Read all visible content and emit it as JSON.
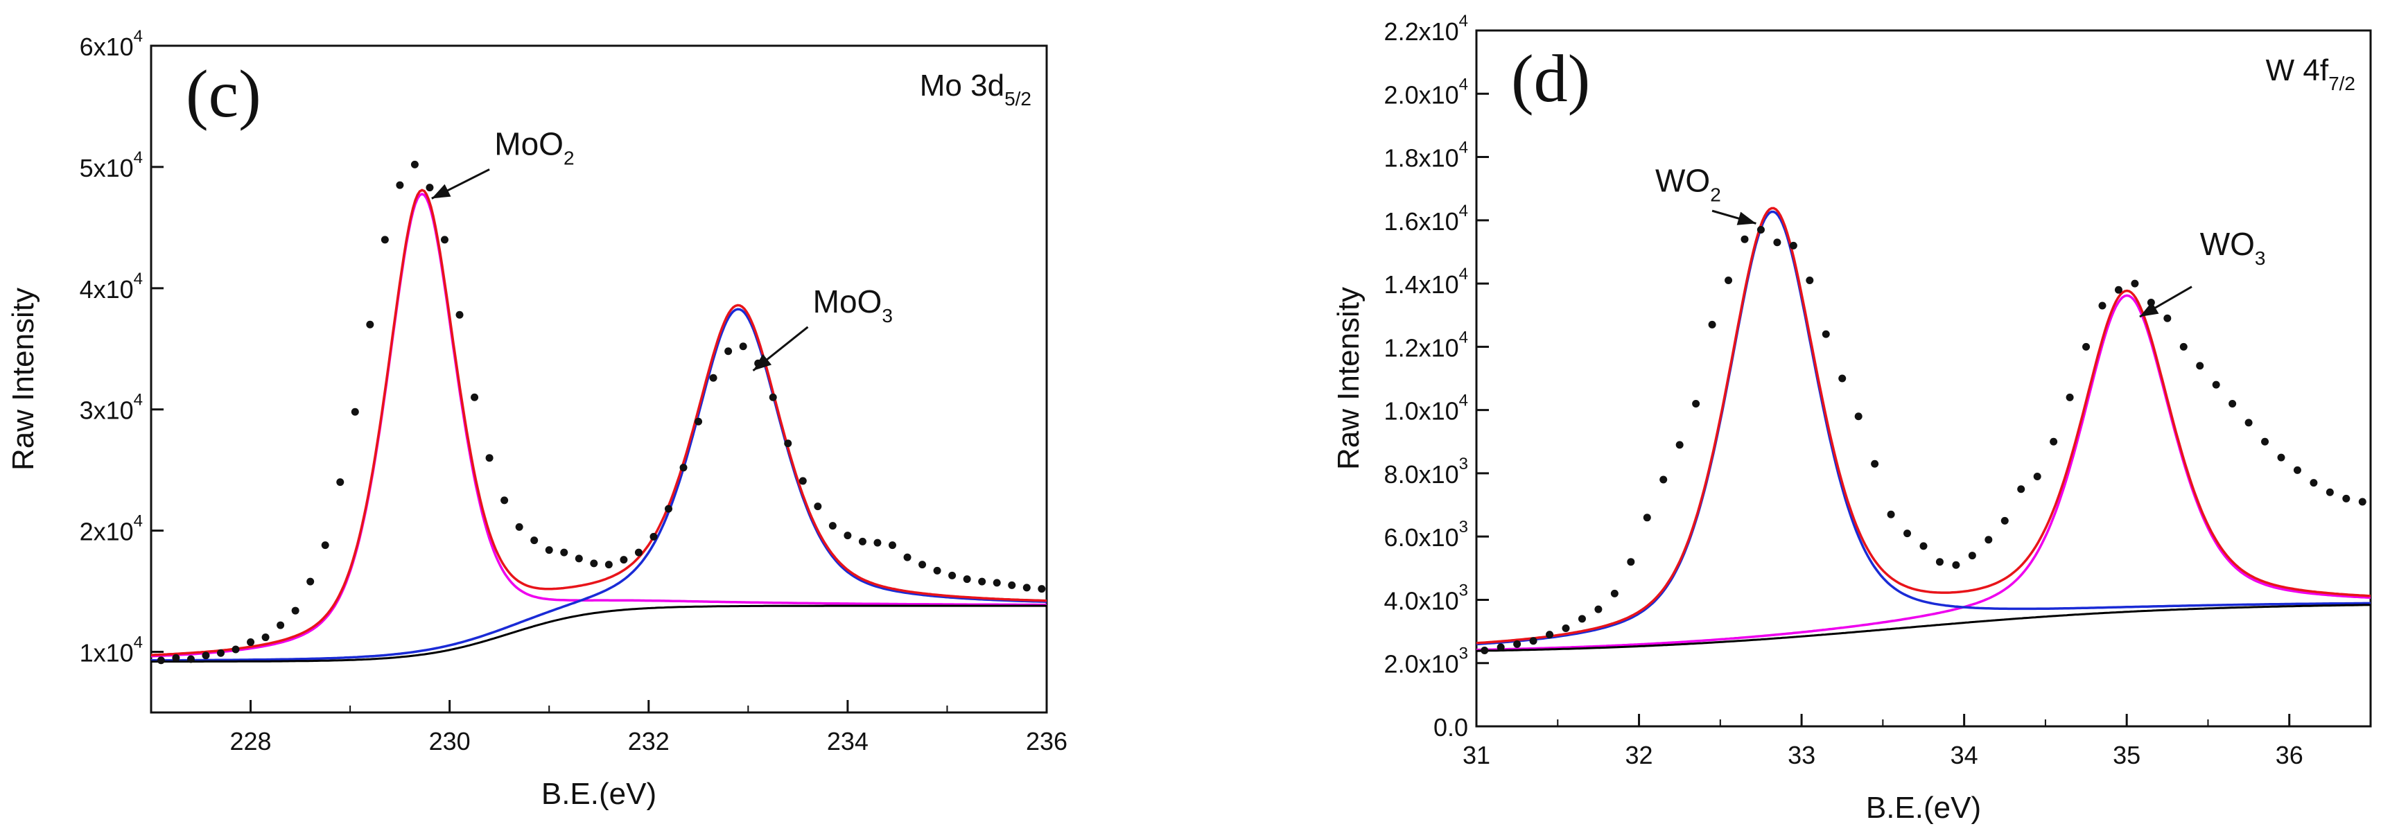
{
  "chart_data": [
    {
      "type": "scatter",
      "panel_label": "(c)",
      "region": {
        "prefix": "Mo 3d",
        "subscript": "5/2"
      },
      "xlabel": "B.E.(eV)",
      "ylabel": "Raw Intensity",
      "xlim": [
        227,
        236
      ],
      "ylim": [
        5000,
        60000
      ],
      "x_ticks": [
        228,
        230,
        232,
        234,
        236
      ],
      "y_ticks": [
        {
          "value": 10000,
          "mantissa": "1x10",
          "exp": "4"
        },
        {
          "value": 20000,
          "mantissa": "2x10",
          "exp": "4"
        },
        {
          "value": 30000,
          "mantissa": "3x10",
          "exp": "4"
        },
        {
          "value": 40000,
          "mantissa": "4x10",
          "exp": "4"
        },
        {
          "value": 50000,
          "mantissa": "5x10",
          "exp": "4"
        },
        {
          "value": 60000,
          "mantissa": "6x10",
          "exp": "4"
        }
      ],
      "annotations": [
        {
          "name": "moo2-label",
          "prefix": "MoO",
          "subscript": "2",
          "text_at": [
            230.45,
            51000
          ],
          "arrow_from": [
            230.4,
            49800
          ],
          "arrow_to": [
            229.82,
            47400
          ]
        },
        {
          "name": "moo3-label",
          "prefix": "MoO",
          "subscript": "3",
          "text_at": [
            233.65,
            38000
          ],
          "arrow_from": [
            233.6,
            36800
          ],
          "arrow_to": [
            233.05,
            33200
          ]
        }
      ],
      "series": [
        {
          "name": "measured",
          "style": "dots",
          "color": "#111111",
          "x": [
            227.1,
            227.25,
            227.4,
            227.55,
            227.7,
            227.85,
            228.0,
            228.15,
            228.3,
            228.45,
            228.6,
            228.75,
            228.9,
            229.05,
            229.2,
            229.35,
            229.5,
            229.65,
            229.8,
            229.95,
            230.1,
            230.25,
            230.4,
            230.55,
            230.7,
            230.85,
            231.0,
            231.15,
            231.3,
            231.45,
            231.6,
            231.75,
            231.9,
            232.05,
            232.2,
            232.35,
            232.5,
            232.65,
            232.8,
            232.95,
            233.1,
            233.25,
            233.4,
            233.55,
            233.7,
            233.85,
            234.0,
            234.15,
            234.3,
            234.45,
            234.6,
            234.75,
            234.9,
            235.05,
            235.2,
            235.35,
            235.5,
            235.65,
            235.8,
            235.95
          ],
          "y": [
            9300,
            9500,
            9400,
            9700,
            9900,
            10200,
            10800,
            11200,
            12200,
            13400,
            15800,
            18800,
            24000,
            29800,
            37000,
            44000,
            48500,
            50200,
            48300,
            44000,
            37800,
            31000,
            26000,
            22500,
            20300,
            19200,
            18400,
            18200,
            17700,
            17300,
            17200,
            17600,
            18200,
            19500,
            21800,
            25200,
            29000,
            32600,
            34800,
            35200,
            33800,
            31000,
            27200,
            24100,
            22000,
            20400,
            19600,
            19100,
            19000,
            18800,
            17800,
            17200,
            16700,
            16300,
            16000,
            15800,
            15700,
            15500,
            15300,
            15200
          ]
        },
        {
          "name": "MoO2 component",
          "style": "line",
          "color": "#ee00ee",
          "model": "voigt",
          "center": 229.72,
          "amplitude": 38000,
          "width": 0.42,
          "baseline": "bg_c"
        },
        {
          "name": "MoO3 component",
          "style": "line",
          "color": "#1a2bd6",
          "model": "voigt",
          "center": 232.9,
          "amplitude": 24500,
          "width": 0.52,
          "baseline": "bg_c"
        },
        {
          "name": "envelope",
          "style": "line",
          "color": "#e8141a",
          "model": "sum"
        },
        {
          "name": "background",
          "style": "line",
          "color": "#000000",
          "model": "shirley"
        }
      ],
      "background": {
        "left": 9200,
        "right": 13800,
        "center": 230.6,
        "width": 0.45
      }
    },
    {
      "type": "scatter",
      "panel_label": "(d)",
      "region": {
        "prefix": "W 4f",
        "subscript": "7/2"
      },
      "xlabel": "B.E.(eV)",
      "ylabel": "Raw Intensity",
      "xlim": [
        31,
        36.5
      ],
      "ylim": [
        0,
        22000
      ],
      "x_ticks": [
        31,
        32,
        33,
        34,
        35,
        36
      ],
      "y_ticks": [
        {
          "value": 0,
          "mantissa": "0.0",
          "exp": ""
        },
        {
          "value": 2000,
          "mantissa": "2.0x10",
          "exp": "3"
        },
        {
          "value": 4000,
          "mantissa": "4.0x10",
          "exp": "3"
        },
        {
          "value": 6000,
          "mantissa": "6.0x10",
          "exp": "3"
        },
        {
          "value": 8000,
          "mantissa": "8.0x10",
          "exp": "3"
        },
        {
          "value": 10000,
          "mantissa": "1.0x10",
          "exp": "4"
        },
        {
          "value": 12000,
          "mantissa": "1.2x10",
          "exp": "4"
        },
        {
          "value": 14000,
          "mantissa": "1.4x10",
          "exp": "4"
        },
        {
          "value": 16000,
          "mantissa": "1.6x10",
          "exp": "4"
        },
        {
          "value": 18000,
          "mantissa": "1.8x10",
          "exp": "4"
        },
        {
          "value": 20000,
          "mantissa": "2.0x10",
          "exp": "4"
        },
        {
          "value": 22000,
          "mantissa": "2.2x10",
          "exp": "4"
        }
      ],
      "annotations": [
        {
          "name": "wo2-label",
          "prefix": "WO",
          "subscript": "2",
          "text_at": [
            32.1,
            16900
          ],
          "arrow_from": [
            32.45,
            16300
          ],
          "arrow_to": [
            32.72,
            15900
          ]
        },
        {
          "name": "wo3-label",
          "prefix": "WO",
          "subscript": "3",
          "text_at": [
            35.45,
            14900
          ],
          "arrow_from": [
            35.4,
            13900
          ],
          "arrow_to": [
            35.08,
            12950
          ]
        }
      ],
      "series": [
        {
          "name": "measured",
          "style": "dots",
          "color": "#111111",
          "x": [
            31.05,
            31.15,
            31.25,
            31.35,
            31.45,
            31.55,
            31.65,
            31.75,
            31.85,
            31.95,
            32.05,
            32.15,
            32.25,
            32.35,
            32.45,
            32.55,
            32.65,
            32.75,
            32.85,
            32.95,
            33.05,
            33.15,
            33.25,
            33.35,
            33.45,
            33.55,
            33.65,
            33.75,
            33.85,
            33.95,
            34.05,
            34.15,
            34.25,
            34.35,
            34.45,
            34.55,
            34.65,
            34.75,
            34.85,
            34.95,
            35.05,
            35.15,
            35.25,
            35.35,
            35.45,
            35.55,
            35.65,
            35.75,
            35.85,
            35.95,
            36.05,
            36.15,
            36.25,
            36.35,
            36.45
          ],
          "y": [
            2400,
            2500,
            2600,
            2700,
            2900,
            3100,
            3400,
            3700,
            4200,
            5200,
            6600,
            7800,
            8900,
            10200,
            12700,
            14100,
            15400,
            15700,
            15300,
            15200,
            14100,
            12400,
            11000,
            9800,
            8300,
            6700,
            6100,
            5700,
            5200,
            5100,
            5400,
            5900,
            6500,
            7500,
            7900,
            9000,
            10400,
            12000,
            13300,
            13800,
            14000,
            13400,
            12900,
            12000,
            11400,
            10800,
            10200,
            9600,
            9000,
            8500,
            8100,
            7700,
            7400,
            7200,
            7100
          ]
        },
        {
          "name": "WO3 component",
          "style": "line",
          "color": "#ee00ee",
          "model": "voigt",
          "center": 35.0,
          "amplitude": 10000,
          "width": 0.33,
          "baseline": "bg_d"
        },
        {
          "name": "WO2 component",
          "style": "line",
          "color": "#1a2bd6",
          "model": "voigt",
          "center": 32.82,
          "amplitude": 13500,
          "width": 0.33,
          "baseline": "bg_d"
        },
        {
          "name": "envelope",
          "style": "line",
          "color": "#e8141a",
          "model": "sum"
        },
        {
          "name": "background",
          "style": "line",
          "color": "#000000",
          "model": "shirley"
        }
      ],
      "background": {
        "left": 2300,
        "right": 3900,
        "center": 33.6,
        "width": 0.9
      }
    }
  ]
}
